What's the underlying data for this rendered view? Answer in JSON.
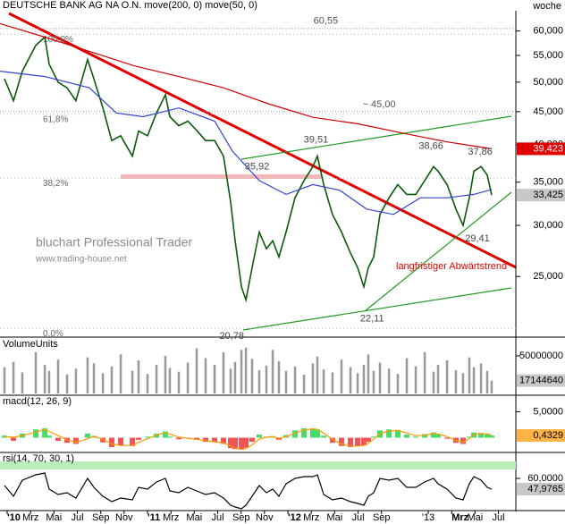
{
  "chart_data": [
    {
      "type": "line",
      "title": "DEUTSCHE BANK AG NA O.N. move(200, 0) move(50, 0)",
      "period": "woche",
      "log": true,
      "watermark": [
        "bluchart Professional Trader",
        "www.trading-house.net"
      ],
      "trend_label": "langfristiger Abwärtstrend",
      "xlim": [
        2009.949,
        2013.624
      ],
      "ylim": [
        20.4,
        64.5
      ],
      "yticks": [
        {
          "value": 60,
          "label": "60,000"
        },
        {
          "value": 55,
          "label": "55,000"
        },
        {
          "value": 50,
          "label": "50,000"
        },
        {
          "value": 45,
          "label": "45,000"
        },
        {
          "value": 40,
          "label": "40,000"
        },
        {
          "value": 35,
          "label": "35,000"
        },
        {
          "value": 30,
          "label": "30,000"
        },
        {
          "value": 25,
          "label": "25,000"
        }
      ],
      "x": [
        2009.981,
        2010.045,
        2010.108,
        2010.204,
        2010.268,
        2010.299,
        2010.363,
        2010.427,
        2010.49,
        2010.573,
        2010.618,
        2010.682,
        2010.745,
        2010.809,
        2010.892,
        2010.936,
        2011.0,
        2011.064,
        2011.127,
        2011.159,
        2011.223,
        2011.287,
        2011.35,
        2011.414,
        2011.478,
        2011.541,
        2011.592,
        2011.624,
        2011.669,
        2011.701,
        2011.745,
        2011.796,
        2011.847,
        2011.892,
        2011.936,
        2011.987,
        2012.051,
        2012.115,
        2012.178,
        2012.21,
        2012.255,
        2012.318,
        2012.382,
        2012.446,
        2012.497,
        2012.541,
        2012.573,
        2012.611,
        2012.656,
        2012.72,
        2012.783,
        2012.847,
        2012.911,
        2012.975,
        2013.038,
        2013.07,
        2013.134,
        2013.197,
        2013.248,
        2013.293,
        2013.325,
        2013.376,
        2013.42,
        2013.452
      ],
      "series": [
        {
          "type": "line",
          "color": "#0a5a0a",
          "values": [
            50.6,
            46.8,
            52,
            57,
            58.7,
            53.3,
            50,
            49,
            46.8,
            54.2,
            50.6,
            45.6,
            40.6,
            41.3,
            38.4,
            42,
            41.3,
            44.8,
            47.8,
            44.2,
            42.8,
            43.5,
            42.1,
            40.6,
            40.6,
            38.4,
            32.6,
            28.4,
            24.1,
            23,
            25.8,
            29.3,
            27.6,
            28.4,
            26.8,
            29.3,
            33.1,
            35.2,
            37,
            38.4,
            34.7,
            31.2,
            29.3,
            27.2,
            25.8,
            24.1,
            25.8,
            26.8,
            31.2,
            33.1,
            34.7,
            33.5,
            33.5,
            35.2,
            37,
            36.4,
            34.7,
            31.8,
            30,
            33.1,
            36.4,
            37,
            35.9,
            33.425
          ]
        },
        {
          "type": "line",
          "color": "#cc0000",
          "x": [
            2009.949,
            2010.268,
            2010.586,
            2010.904,
            2011.223,
            2011.541,
            2011.86,
            2012.178,
            2012.497,
            2012.815,
            2013.134,
            2013.452
          ],
          "values": [
            61.6,
            58.7,
            55.8,
            53,
            51,
            49,
            46.3,
            44.1,
            43.1,
            41.7,
            40.4,
            39.423
          ]
        },
        {
          "type": "line",
          "color": "#3344cc",
          "x": [
            2009.949,
            2010.268,
            2010.586,
            2010.777,
            2010.968,
            2011.223,
            2011.478,
            2011.605,
            2011.796,
            2011.987,
            2012.178,
            2012.369,
            2012.561,
            2012.752,
            2012.943,
            2013.134,
            2013.325,
            2013.452
          ],
          "values": [
            52,
            51,
            49,
            44.8,
            44.2,
            45.6,
            43.5,
            39.1,
            35.2,
            33.5,
            34.7,
            34,
            31.8,
            31.2,
            33.1,
            33.1,
            33.5,
            34.1
          ]
        }
      ],
      "levels": [
        {
          "value": 60.55,
          "label": "60,55",
          "x": 2012.27
        },
        {
          "value": 45,
          "label": "~ 45,00",
          "x": 2012.65
        }
      ],
      "fib": [
        {
          "price": 59.29,
          "label": "100,0%"
        },
        {
          "price": 44.6,
          "label": "61,8%"
        },
        {
          "price": 35.5,
          "label": "38,2%"
        },
        {
          "price": 20.78,
          "label": "0,0%"
        }
      ],
      "points": [
        {
          "value": 39.51,
          "label": "39,51",
          "x": 2012.2,
          "side": "above"
        },
        {
          "value": 38.66,
          "label": "38,66",
          "x": 2013.02,
          "side": "above"
        },
        {
          "value": 37.86,
          "label": "37,86",
          "x": 2013.37,
          "side": "above"
        },
        {
          "value": 35.92,
          "label": "35,92",
          "x": 2011.78,
          "side": "above"
        },
        {
          "value": 29.41,
          "label": "29,41",
          "x": 2013.35,
          "side": "below"
        },
        {
          "value": 22.11,
          "label": "22,11",
          "x": 2012.6,
          "side": "below"
        },
        {
          "value": 20.78,
          "label": "20,78",
          "x": 2011.6,
          "side": "below"
        }
      ],
      "last_labels": [
        {
          "value": 39.423,
          "label": "39,423",
          "color": "#e00000",
          "text_color": "#ffffff"
        },
        {
          "value": 33.425,
          "label": "33,425",
          "color": "#c8c8c8",
          "text_color": "#000000"
        }
      ]
    },
    {
      "type": "bar",
      "title": "VolumeUnits",
      "xlim": [
        2009.949,
        2013.624
      ],
      "ylim": [
        0,
        69000000
      ],
      "yticks": [
        50000000
      ],
      "x": [
        2009.981,
        2010.045,
        2010.108,
        2010.204,
        2010.268,
        2010.299,
        2010.363,
        2010.427,
        2010.49,
        2010.573,
        2010.618,
        2010.682,
        2010.745,
        2010.809,
        2010.892,
        2010.936,
        2011.0,
        2011.064,
        2011.127,
        2011.159,
        2011.223,
        2011.287,
        2011.35,
        2011.414,
        2011.478,
        2011.541,
        2011.592,
        2011.624,
        2011.669,
        2011.701,
        2011.745,
        2011.796,
        2011.847,
        2011.892,
        2011.936,
        2011.987,
        2012.051,
        2012.115,
        2012.178,
        2012.21,
        2012.255,
        2012.318,
        2012.382,
        2012.446,
        2012.497,
        2012.541,
        2012.573,
        2012.611,
        2012.656,
        2012.72,
        2012.783,
        2012.847,
        2012.911,
        2012.975,
        2013.038,
        2013.07,
        2013.134,
        2013.197,
        2013.248,
        2013.293,
        2013.325,
        2013.376,
        2013.42,
        2013.452
      ],
      "series": [
        {
          "type": "bar",
          "color": "#999999",
          "values": [
            35000000,
            42000000,
            28000000,
            55000000,
            38000000,
            30000000,
            45000000,
            25000000,
            33000000,
            48000000,
            40000000,
            27000000,
            36000000,
            52000000,
            30000000,
            44000000,
            26000000,
            38000000,
            50000000,
            34000000,
            29000000,
            41000000,
            60000000,
            47000000,
            38000000,
            55000000,
            33000000,
            42000000,
            58000000,
            61000000,
            46000000,
            31000000,
            37000000,
            58000000,
            43000000,
            30000000,
            36000000,
            25000000,
            40000000,
            49000000,
            32000000,
            28000000,
            45000000,
            35000000,
            27000000,
            38000000,
            52000000,
            30000000,
            41000000,
            33000000,
            26000000,
            47000000,
            36000000,
            55000000,
            29000000,
            38000000,
            44000000,
            31000000,
            27000000,
            48000000,
            35000000,
            40000000,
            30000000,
            17144640
          ]
        }
      ],
      "last_labels": [
        {
          "value": 17144640,
          "label": "17144640",
          "color": "#c8c8c8",
          "text_color": "#000000"
        }
      ]
    },
    {
      "type": "line",
      "title": "macd(12, 26, 9)",
      "xlim": [
        2009.949,
        2013.624
      ],
      "ylim": [
        -2.5,
        7.5
      ],
      "yticks": [
        {
          "value": 5,
          "label": "5,0000"
        }
      ],
      "x": [
        2009.981,
        2010.045,
        2010.108,
        2010.204,
        2010.268,
        2010.299,
        2010.363,
        2010.427,
        2010.49,
        2010.573,
        2010.618,
        2010.682,
        2010.745,
        2010.809,
        2010.892,
        2010.936,
        2011.0,
        2011.064,
        2011.127,
        2011.159,
        2011.223,
        2011.287,
        2011.35,
        2011.414,
        2011.478,
        2011.541,
        2011.592,
        2011.624,
        2011.669,
        2011.701,
        2011.745,
        2011.796,
        2011.847,
        2011.892,
        2011.936,
        2011.987,
        2012.051,
        2012.115,
        2012.178,
        2012.21,
        2012.255,
        2012.318,
        2012.382,
        2012.446,
        2012.497,
        2012.541,
        2012.573,
        2012.611,
        2012.656,
        2012.72,
        2012.783,
        2012.847,
        2012.911,
        2012.975,
        2013.038,
        2013.07,
        2013.134,
        2013.197,
        2013.248,
        2013.293,
        2013.325,
        2013.376,
        2013.42,
        2013.452
      ],
      "series": [
        {
          "type": "bar",
          "color": "#44dd66",
          "negative_color": "#ee5555",
          "values": [
            0.4,
            -0.6,
            0.8,
            1.6,
            1.8,
            0.4,
            -0.6,
            -1.0,
            -1.2,
            0.8,
            0.3,
            -0.9,
            -1.8,
            -1.5,
            -1.6,
            -0.4,
            0.2,
            0.8,
            1.2,
            0.2,
            -0.3,
            -0.1,
            -0.4,
            -0.8,
            -0.8,
            -1.2,
            -2.0,
            -2.2,
            -2.3,
            -1.9,
            -0.8,
            0.6,
            0.2,
            0.3,
            -0.4,
            0.5,
            1.4,
            1.8,
            1.7,
            1.6,
            0.4,
            -1.0,
            -1.6,
            -1.8,
            -1.6,
            -1.5,
            -0.8,
            0.2,
            1.4,
            1.6,
            1.5,
            0.6,
            0.2,
            0.7,
            1.0,
            0.6,
            -0.2,
            -1.0,
            -1.2,
            0.2,
            1.0,
            0.9,
            0.6,
            0.4329
          ]
        },
        {
          "type": "line",
          "color": "#ff9900",
          "values": [
            0.2,
            0.1,
            0.4,
            1.1,
            1.6,
            1.2,
            0.4,
            -0.4,
            -0.9,
            -0.2,
            0.3,
            -0.3,
            -1.2,
            -1.5,
            -1.5,
            -0.9,
            -0.2,
            0.5,
            1.0,
            0.7,
            0.1,
            -0.1,
            -0.3,
            -0.6,
            -0.8,
            -1.0,
            -1.6,
            -2.0,
            -2.2,
            -2.1,
            -1.4,
            -0.3,
            0.1,
            0.2,
            -0.1,
            0.2,
            0.9,
            1.5,
            1.7,
            1.6,
            0.9,
            -0.3,
            -1.2,
            -1.6,
            -1.6,
            -1.5,
            -1.1,
            -0.3,
            0.8,
            1.3,
            1.4,
            0.9,
            0.4,
            0.5,
            0.8,
            0.7,
            0.2,
            -0.5,
            -0.9,
            -0.2,
            0.6,
            0.8,
            0.7,
            0.5
          ]
        }
      ],
      "last_labels": [
        {
          "value": 0.4329,
          "label": "0,4329",
          "color": "#ffb347",
          "text_color": "#000000"
        }
      ]
    },
    {
      "type": "line",
      "title": "rsi(14, 70, 30, 1)",
      "xlim": [
        2009.949,
        2013.624
      ],
      "ylim": [
        25,
        85
      ],
      "yticks": [
        {
          "value": 60,
          "label": "60,0000"
        }
      ],
      "band": 70,
      "x": [
        2009.981,
        2010.045,
        2010.108,
        2010.204,
        2010.268,
        2010.299,
        2010.363,
        2010.427,
        2010.49,
        2010.573,
        2010.618,
        2010.682,
        2010.745,
        2010.809,
        2010.892,
        2010.936,
        2011.0,
        2011.064,
        2011.127,
        2011.159,
        2011.223,
        2011.287,
        2011.35,
        2011.414,
        2011.478,
        2011.541,
        2011.592,
        2011.624,
        2011.669,
        2011.701,
        2011.745,
        2011.796,
        2011.847,
        2011.892,
        2011.936,
        2011.987,
        2012.051,
        2012.115,
        2012.178,
        2012.21,
        2012.255,
        2012.318,
        2012.382,
        2012.446,
        2012.497,
        2012.541,
        2012.573,
        2012.611,
        2012.656,
        2012.72,
        2012.783,
        2012.847,
        2012.911,
        2012.975,
        2013.038,
        2013.07,
        2013.134,
        2013.197,
        2013.248,
        2013.293,
        2013.325,
        2013.376,
        2013.42,
        2013.452
      ],
      "series": [
        {
          "type": "line",
          "color": "#000000",
          "values": [
            52,
            40,
            58,
            64,
            66,
            48,
            42,
            44,
            38,
            60,
            50,
            40,
            34,
            38,
            36,
            50,
            48,
            56,
            60,
            46,
            44,
            50,
            46,
            42,
            44,
            38,
            30,
            28,
            26,
            30,
            40,
            52,
            44,
            48,
            40,
            54,
            60,
            62,
            62,
            64,
            42,
            36,
            38,
            34,
            32,
            30,
            40,
            44,
            60,
            58,
            60,
            50,
            50,
            56,
            60,
            54,
            48,
            38,
            36,
            54,
            62,
            58,
            50,
            47.9765
          ]
        }
      ],
      "last_labels": [
        {
          "value": 47.9765,
          "label": "47,9765",
          "color": "#c8c8c8",
          "text_color": "#000000"
        }
      ],
      "xticks": [
        {
          "value": 2010,
          "label": "'10"
        },
        {
          "value": 2010.167,
          "label": "Mrz"
        },
        {
          "value": 2010.333,
          "label": "Mai"
        },
        {
          "value": 2010.5,
          "label": "Jul"
        },
        {
          "value": 2010.667,
          "label": "Sep"
        },
        {
          "value": 2010.833,
          "label": "Nov"
        },
        {
          "value": 2011,
          "label": "'11"
        },
        {
          "value": 2011.167,
          "label": "Mrz"
        },
        {
          "value": 2011.333,
          "label": "Mai"
        },
        {
          "value": 2011.5,
          "label": "Jul"
        },
        {
          "value": 2011.667,
          "label": "Sep"
        },
        {
          "value": 2011.833,
          "label": "Nov"
        },
        {
          "value": 2012,
          "label": "'12"
        },
        {
          "value": 2012.167,
          "label": "Mrz"
        },
        {
          "value": 2012.333,
          "label": "Mai"
        },
        {
          "value": 2012.5,
          "label": "Jul"
        },
        {
          "value": 2012.667,
          "label": "Sep"
        },
        {
          "value": 2013,
          "label": "'13"
        },
        {
          "value": 2013.167,
          "label": "Mrz"
        },
        {
          "value": 2013.333,
          "label": "Mai"
        },
        {
          "value": 2013.5,
          "label": "Jul"
        }
      ]
    }
  ]
}
